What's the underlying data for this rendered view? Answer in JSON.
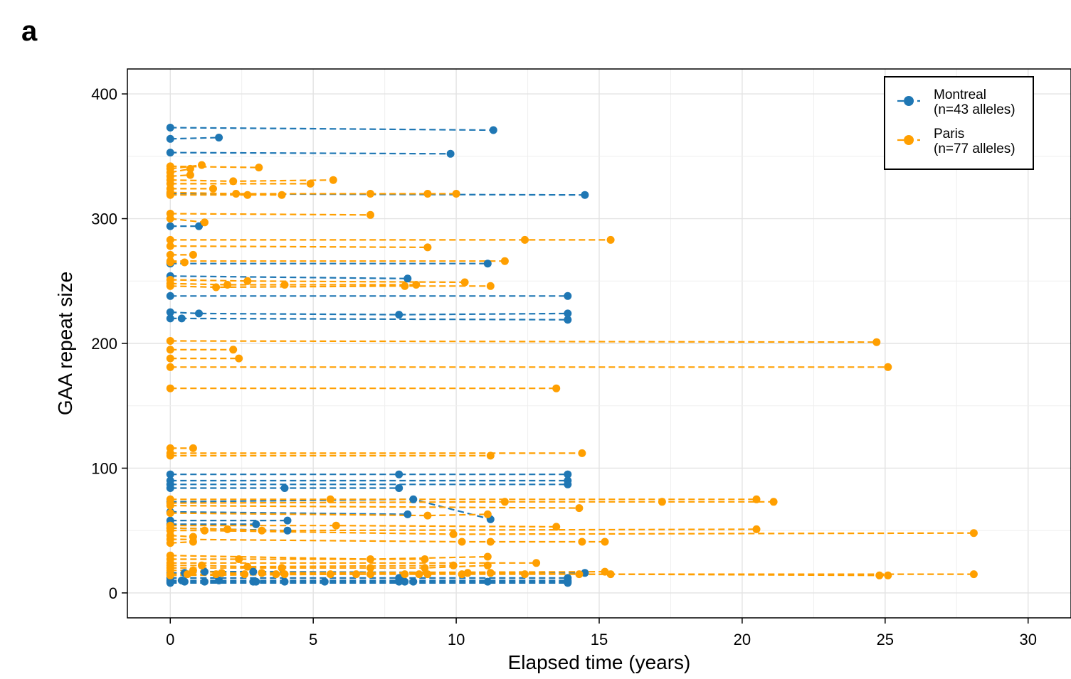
{
  "panel_label": "a",
  "chart_data": {
    "type": "scatter",
    "title": "",
    "xlabel": "Elapsed time (years)",
    "ylabel": "GAA repeat size",
    "xlim": [
      -1.5,
      31.5
    ],
    "ylim": [
      -20,
      420
    ],
    "xticks": [
      0,
      5,
      10,
      15,
      20,
      25,
      30
    ],
    "yticks": [
      0,
      100,
      200,
      300,
      400
    ],
    "grid": true,
    "legend_position": "top-right",
    "legend": [
      {
        "name": "Montreal",
        "sub": "(n=43 alleles)",
        "color": "#1f77b4"
      },
      {
        "name": "Paris",
        "sub": "(n=77 alleles)",
        "color": "#ff9f00"
      }
    ],
    "series": [
      {
        "name": "Montreal",
        "color": "#1f77b4",
        "line_style": "dashed",
        "alleles": [
          [
            [
              0,
              373
            ],
            [
              11.3,
              371
            ]
          ],
          [
            [
              0,
              364
            ],
            [
              1.7,
              365
            ]
          ],
          [
            [
              0,
              353
            ],
            [
              9.8,
              352
            ]
          ],
          [
            [
              0,
              320
            ],
            [
              14.5,
              319
            ]
          ],
          [
            [
              0,
              294
            ],
            [
              1,
              294
            ]
          ],
          [
            [
              0,
              264
            ],
            [
              11.1,
              264
            ]
          ],
          [
            [
              0,
              254
            ],
            [
              8.3,
              252
            ]
          ],
          [
            [
              0,
              238
            ],
            [
              13.9,
              238
            ]
          ],
          [
            [
              0,
              225
            ],
            [
              1,
              224
            ],
            [
              8,
              223
            ],
            [
              13.9,
              224
            ]
          ],
          [
            [
              0,
              220
            ],
            [
              0.4,
              220
            ],
            [
              13.9,
              219
            ]
          ],
          [
            [
              0,
              95
            ],
            [
              8,
              95
            ],
            [
              13.9,
              95
            ]
          ],
          [
            [
              0,
              90
            ],
            [
              13.9,
              90
            ]
          ],
          [
            [
              0,
              87
            ],
            [
              13.9,
              87
            ]
          ],
          [
            [
              0,
              84
            ],
            [
              4,
              84
            ],
            [
              8,
              84
            ]
          ],
          [
            [
              0,
              73
            ],
            [
              8.5,
              75
            ],
            [
              11.2,
              59
            ]
          ],
          [
            [
              0,
              65
            ],
            [
              8.3,
              63
            ]
          ],
          [
            [
              0,
              58
            ],
            [
              4.1,
              58
            ]
          ],
          [
            [
              0,
              55
            ],
            [
              3,
              55
            ]
          ],
          [
            [
              0,
              52
            ],
            [
              4.1,
              50
            ]
          ],
          [
            [
              0,
              16
            ],
            [
              0.5,
              16
            ],
            [
              1.2,
              17
            ],
            [
              2.9,
              17
            ],
            [
              14.5,
              16
            ]
          ],
          [
            [
              0,
              12
            ],
            [
              8,
              12
            ],
            [
              13.9,
              12
            ]
          ],
          [
            [
              0,
              10
            ],
            [
              0.4,
              10
            ],
            [
              1.7,
              10
            ],
            [
              13.9,
              10
            ]
          ],
          [
            [
              0,
              9
            ],
            [
              0.5,
              9
            ],
            [
              1.2,
              9
            ],
            [
              2.9,
              9
            ],
            [
              3,
              9
            ],
            [
              4,
              9
            ],
            [
              5.4,
              9
            ],
            [
              8,
              9
            ],
            [
              8.2,
              9
            ],
            [
              8.5,
              9
            ],
            [
              11.1,
              9
            ],
            [
              13.9,
              9
            ]
          ],
          [
            [
              0,
              8
            ],
            [
              13.9,
              8
            ]
          ]
        ]
      },
      {
        "name": "Paris",
        "color": "#ff9f00",
        "line_style": "dashed",
        "alleles": [
          [
            [
              0,
              342
            ],
            [
              3.1,
              341
            ]
          ],
          [
            [
              0,
              340
            ],
            [
              1.1,
              343
            ]
          ],
          [
            [
              0,
              337
            ],
            [
              0.7,
              340
            ]
          ],
          [
            [
              0,
              334
            ],
            [
              0.7,
              335
            ]
          ],
          [
            [
              0,
              331
            ],
            [
              2.2,
              330
            ],
            [
              5.7,
              331
            ]
          ],
          [
            [
              0,
              328
            ],
            [
              4.9,
              328
            ]
          ],
          [
            [
              0,
              324
            ],
            [
              1.5,
              324
            ]
          ],
          [
            [
              0,
              321
            ],
            [
              2.3,
              320
            ],
            [
              7,
              320
            ],
            [
              9,
              320
            ],
            [
              10,
              320
            ]
          ],
          [
            [
              0,
              319
            ],
            [
              2.7,
              319
            ],
            [
              3.9,
              319
            ]
          ],
          [
            [
              0,
              304
            ],
            [
              7,
              303
            ]
          ],
          [
            [
              0,
              300
            ],
            [
              1.2,
              297
            ]
          ],
          [
            [
              0,
              283
            ],
            [
              12.4,
              283
            ],
            [
              15.4,
              283
            ]
          ],
          [
            [
              0,
              278
            ],
            [
              9,
              277
            ]
          ],
          [
            [
              0,
              271
            ],
            [
              0.8,
              271
            ]
          ],
          [
            [
              0,
              266
            ],
            [
              11.7,
              266
            ]
          ],
          [
            [
              0,
              265
            ],
            [
              0.5,
              265
            ]
          ],
          [
            [
              0,
              251
            ],
            [
              2.7,
              250
            ],
            [
              10.3,
              249
            ]
          ],
          [
            [
              0,
              248
            ],
            [
              2,
              247
            ],
            [
              4,
              247
            ],
            [
              8.6,
              247
            ]
          ],
          [
            [
              0,
              246
            ],
            [
              1.6,
              245
            ],
            [
              8.2,
              246
            ],
            [
              11.2,
              246
            ]
          ],
          [
            [
              0,
              202
            ],
            [
              24.7,
              201
            ]
          ],
          [
            [
              0,
              195
            ],
            [
              2.2,
              195
            ]
          ],
          [
            [
              0,
              188
            ],
            [
              2.4,
              188
            ]
          ],
          [
            [
              0,
              181
            ],
            [
              25.1,
              181
            ]
          ],
          [
            [
              0,
              164
            ],
            [
              13.5,
              164
            ]
          ],
          [
            [
              0,
              116
            ],
            [
              0.8,
              116
            ]
          ],
          [
            [
              0,
              112
            ],
            [
              14.4,
              112
            ]
          ],
          [
            [
              0,
              110
            ],
            [
              11.2,
              110
            ]
          ],
          [
            [
              0,
              75
            ],
            [
              5.6,
              75
            ],
            [
              20.5,
              75
            ]
          ],
          [
            [
              0,
              72
            ],
            [
              11.7,
              73
            ],
            [
              17.2,
              73
            ],
            [
              21.1,
              73
            ]
          ],
          [
            [
              0,
              70
            ],
            [
              14.3,
              68
            ]
          ],
          [
            [
              0,
              64
            ],
            [
              9,
              62
            ],
            [
              11.1,
              63
            ]
          ],
          [
            [
              0,
              54
            ],
            [
              5.8,
              54
            ],
            [
              13.5,
              53
            ]
          ],
          [
            [
              0,
              52
            ],
            [
              2,
              51
            ],
            [
              3.2,
              50
            ],
            [
              20.5,
              51
            ]
          ],
          [
            [
              0,
              50
            ],
            [
              1.2,
              50
            ],
            [
              9.9,
              47
            ],
            [
              28.1,
              48
            ]
          ],
          [
            [
              0,
              46
            ],
            [
              0.8,
              45
            ]
          ],
          [
            [
              0,
              43
            ],
            [
              10.2,
              41
            ],
            [
              11.2,
              41
            ],
            [
              14.4,
              41
            ],
            [
              15.2,
              41
            ]
          ],
          [
            [
              0,
              40
            ],
            [
              0.8,
              41
            ]
          ],
          [
            [
              0,
              30
            ],
            [
              7,
              27
            ],
            [
              11.1,
              29
            ]
          ],
          [
            [
              0,
              27
            ],
            [
              2.4,
              27
            ],
            [
              8.9,
              27
            ]
          ],
          [
            [
              0,
              24
            ],
            [
              12.8,
              24
            ]
          ],
          [
            [
              0,
              22
            ],
            [
              1.1,
              22
            ],
            [
              2.7,
              21
            ],
            [
              9.9,
              22
            ]
          ],
          [
            [
              0,
              20
            ],
            [
              3.9,
              20
            ],
            [
              7,
              20
            ],
            [
              8.9,
              20
            ],
            [
              11.1,
              22
            ]
          ],
          [
            [
              0,
              18
            ],
            [
              0.8,
              18
            ],
            [
              1.8,
              16
            ],
            [
              3.2,
              16
            ],
            [
              15.2,
              17
            ]
          ],
          [
            [
              0,
              15
            ],
            [
              0.6,
              15
            ],
            [
              1.6,
              15
            ],
            [
              2.6,
              15
            ],
            [
              3.7,
              15
            ],
            [
              4,
              15
            ],
            [
              5.6,
              15
            ],
            [
              7,
              15
            ],
            [
              8.2,
              15
            ],
            [
              8.7,
              15
            ],
            [
              9,
              15
            ],
            [
              10.2,
              15
            ],
            [
              12.4,
              15
            ],
            [
              15.4,
              15
            ],
            [
              24.8,
              14
            ],
            [
              25.1,
              14
            ]
          ],
          [
            [
              0,
              14
            ],
            [
              6.5,
              15
            ],
            [
              10.4,
              16
            ],
            [
              11.2,
              16
            ],
            [
              14.3,
              15
            ],
            [
              28.1,
              15
            ]
          ]
        ]
      }
    ]
  }
}
